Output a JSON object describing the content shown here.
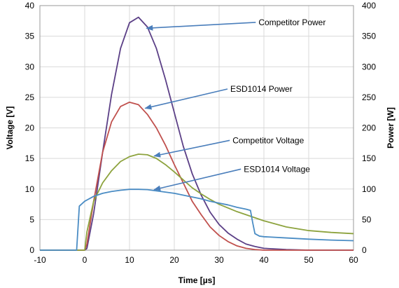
{
  "chart_data": {
    "type": "line",
    "xlabel": "Time [µs]",
    "ylabel_left": "Voltage [V]",
    "ylabel_right": "Power [W]",
    "xlim": [
      -10,
      60
    ],
    "ylim_left": [
      0,
      40
    ],
    "ylim_right": [
      0,
      400
    ],
    "x_ticks": [
      "-10",
      "0",
      "10",
      "20",
      "30",
      "40",
      "50",
      "60"
    ],
    "y_left_ticks": [
      "0",
      "5",
      "10",
      "15",
      "20",
      "25",
      "30",
      "35",
      "40"
    ],
    "y_right_ticks": [
      "0",
      "50",
      "100",
      "150",
      "200",
      "250",
      "300",
      "350",
      "400"
    ],
    "grid": true,
    "legend": "none",
    "series": [
      {
        "name": "Competitor Power",
        "axis": "right",
        "color": "#5b3f86",
        "x": [
          -10,
          0,
          0.5,
          2,
          4,
          6,
          8,
          10,
          12,
          14,
          16,
          18,
          20,
          22,
          24,
          26,
          28,
          30,
          32,
          34,
          36,
          38,
          40,
          45,
          50,
          60
        ],
        "y": [
          0,
          0,
          3,
          60,
          160,
          255,
          330,
          372,
          381,
          365,
          330,
          280,
          225,
          170,
          125,
          90,
          62,
          42,
          28,
          18,
          10,
          6,
          3,
          1,
          0,
          0
        ]
      },
      {
        "name": "ESD1014 Power",
        "axis": "right",
        "color": "#c0504d",
        "x": [
          -10,
          0,
          0.5,
          2,
          4,
          6,
          8,
          10,
          12,
          14,
          16,
          18,
          20,
          22,
          24,
          26,
          28,
          30,
          32,
          34,
          36,
          38,
          40,
          45,
          60
        ],
        "y": [
          0,
          0,
          10,
          80,
          160,
          210,
          235,
          242,
          238,
          222,
          200,
          172,
          140,
          110,
          80,
          58,
          38,
          24,
          14,
          7,
          3,
          1,
          0,
          0,
          0
        ]
      },
      {
        "name": "Competitor Voltage",
        "axis": "left",
        "color": "#8da33e",
        "x": [
          -10,
          0,
          0.5,
          2,
          4,
          6,
          8,
          10,
          12,
          14,
          16,
          18,
          20,
          22,
          24,
          26,
          28,
          30,
          32,
          34,
          36,
          38,
          40,
          45,
          50,
          55,
          60
        ],
        "y": [
          0,
          0,
          3,
          8,
          11,
          13,
          14.5,
          15.3,
          15.7,
          15.6,
          15,
          14,
          12.8,
          11.5,
          10.2,
          9.2,
          8.3,
          7.5,
          6.9,
          6.3,
          5.8,
          5.3,
          4.8,
          3.8,
          3.2,
          2.9,
          2.7
        ]
      },
      {
        "name": "ESD1014 Voltage",
        "axis": "left",
        "color": "#4a8cc4",
        "x": [
          -10,
          -1.8,
          -1.2,
          0,
          2,
          4,
          6,
          8,
          10,
          12,
          14,
          16,
          18,
          20,
          22,
          24,
          26,
          28,
          30,
          32,
          34,
          36,
          37,
          37.5,
          38,
          39,
          40,
          45,
          50,
          55,
          60
        ],
        "y": [
          0,
          0,
          7.2,
          8,
          8.8,
          9.3,
          9.6,
          9.8,
          9.95,
          9.95,
          9.9,
          9.7,
          9.5,
          9.3,
          9.0,
          8.7,
          8.4,
          8.0,
          7.7,
          7.4,
          7.0,
          6.7,
          6.5,
          4.5,
          2.7,
          2.3,
          2.2,
          2.0,
          1.8,
          1.65,
          1.55
        ]
      }
    ],
    "annotations": [
      {
        "text": "Competitor Power",
        "target_series": "Competitor Power",
        "target_x": 13.8,
        "target_y": 363,
        "label_x": 38.8,
        "label_y": 368
      },
      {
        "text": "ESD1014 Power",
        "target_series": "ESD1014 Power",
        "target_x": 13.5,
        "target_y": 232,
        "label_x": 32.5,
        "label_y": 259
      },
      {
        "text": "Competitor Voltage",
        "target_series": "Competitor Voltage",
        "target_x": 15.5,
        "target_y": 15.4,
        "label_x": 33,
        "label_y": 17.5
      },
      {
        "text": "ESD1014 Voltage",
        "target_series": "ESD1014 Voltage",
        "target_x": 15.5,
        "target_y": 9.9,
        "label_x": 35.5,
        "label_y": 12.8
      }
    ]
  }
}
